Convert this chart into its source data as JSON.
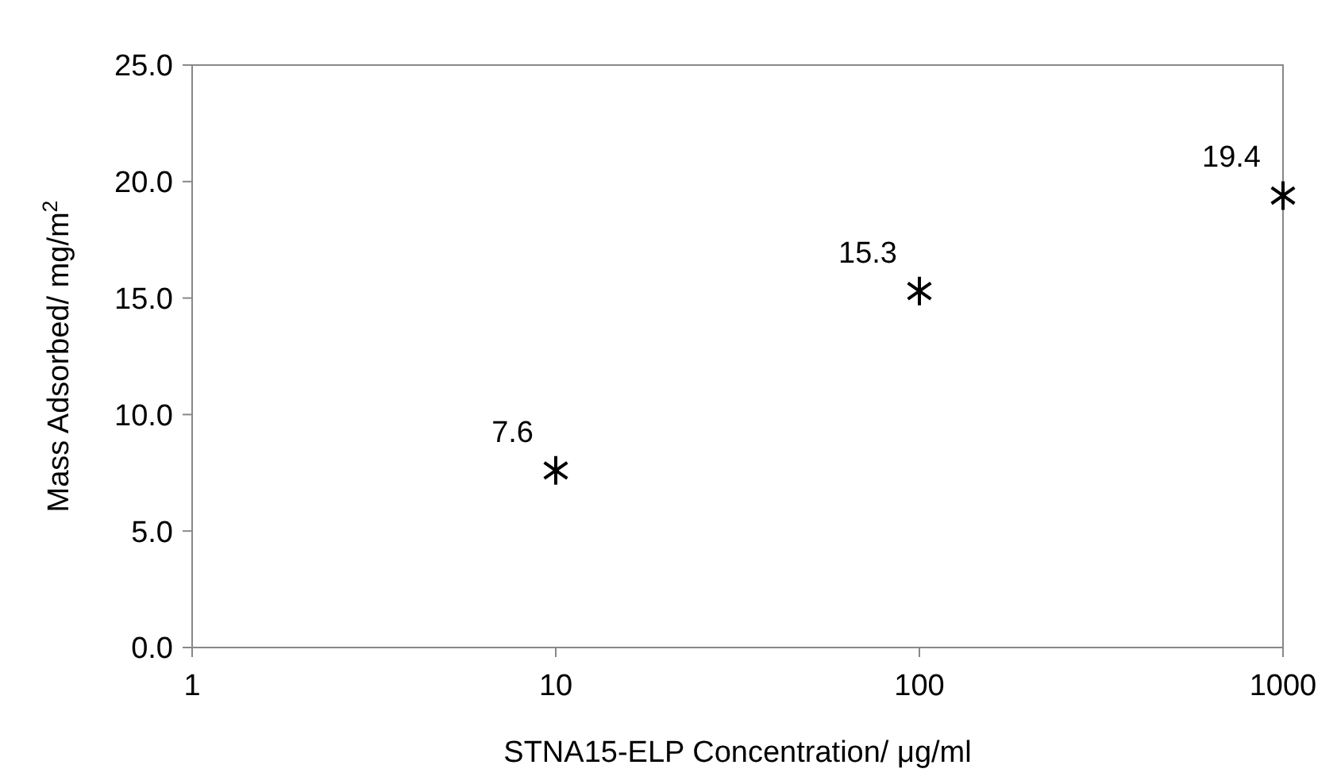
{
  "chart_data": {
    "type": "scatter",
    "xlabel": "STNA15-ELP Concentration/ μg/ml",
    "ylabel": "Mass Adsorbed/ mg/m$^{2}$",
    "x": [
      10,
      100,
      1000
    ],
    "values": [
      7.6,
      15.3,
      19.4
    ],
    "color": "#000000",
    "marker": "cross",
    "data_labels": true,
    "log": "x",
    "grid": false,
    "xlim": [
      1,
      1000
    ],
    "xticks": [
      1,
      10,
      100,
      1000
    ],
    "ylim": [
      0,
      25
    ],
    "yticks": [
      {
        "value": 0,
        "label": "0.0"
      },
      {
        "value": 5,
        "label": "5.0"
      },
      {
        "value": 10,
        "label": "10.0"
      },
      {
        "value": 15,
        "label": "15.0"
      },
      {
        "value": 20,
        "label": "20.0"
      },
      {
        "value": 25,
        "label": "25.0"
      }
    ]
  }
}
